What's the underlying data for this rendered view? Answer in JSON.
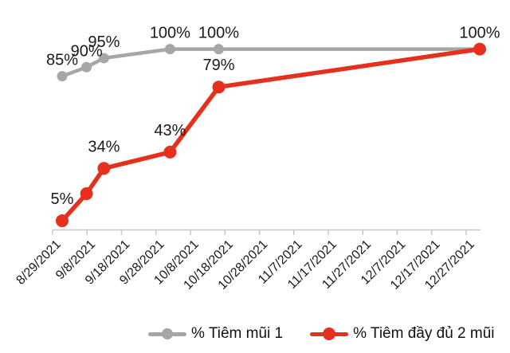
{
  "chart_data": {
    "type": "line",
    "title": "",
    "grid": false,
    "legend_position": "bottom",
    "x_axis": {
      "tick_labels": [
        "8/29/2021",
        "9/8/2021",
        "9/18/2021",
        "9/28/2021",
        "10/8/2021",
        "10/18/2021",
        "10/28/2021",
        "11/7/2021",
        "11/17/2021",
        "11/27/2021",
        "12/7/2021",
        "12/17/2021",
        "12/27/2021"
      ],
      "tick_interval_days": 10,
      "label_rotation_deg": -45
    },
    "y_axis": {
      "visible": false,
      "min": 0,
      "max": 100,
      "unit": "%"
    },
    "series": [
      {
        "name": "% Tiêm mũi 1",
        "color": "#a6a6a6",
        "points": [
          {
            "day": 0,
            "value": 85,
            "label": "85%"
          },
          {
            "day": 7,
            "value": 90,
            "label": "90%"
          },
          {
            "day": 12,
            "value": 95,
            "label": "95%"
          },
          {
            "day": 31,
            "value": 100,
            "label": "100%"
          },
          {
            "day": 45,
            "value": 100,
            "label": "100%"
          },
          {
            "day": 120,
            "value": 100,
            "label": "100%"
          }
        ]
      },
      {
        "name": "% Tiêm đầy đủ 2 mũi",
        "color": "#e5301d",
        "points": [
          {
            "day": 0,
            "value": 5,
            "label": "5%"
          },
          {
            "day": 7,
            "value": 20,
            "label": ""
          },
          {
            "day": 12,
            "value": 34,
            "label": "34%"
          },
          {
            "day": 31,
            "value": 43,
            "label": "43%"
          },
          {
            "day": 45,
            "value": 79,
            "label": "79%"
          },
          {
            "day": 120,
            "value": 100,
            "label": ""
          }
        ]
      }
    ]
  },
  "colors": {
    "series_1": "#a6a6a6",
    "series_2": "#e5301d",
    "axis": "#c8c8c8",
    "text": "#1a1a1a",
    "background": "#ffffff"
  }
}
